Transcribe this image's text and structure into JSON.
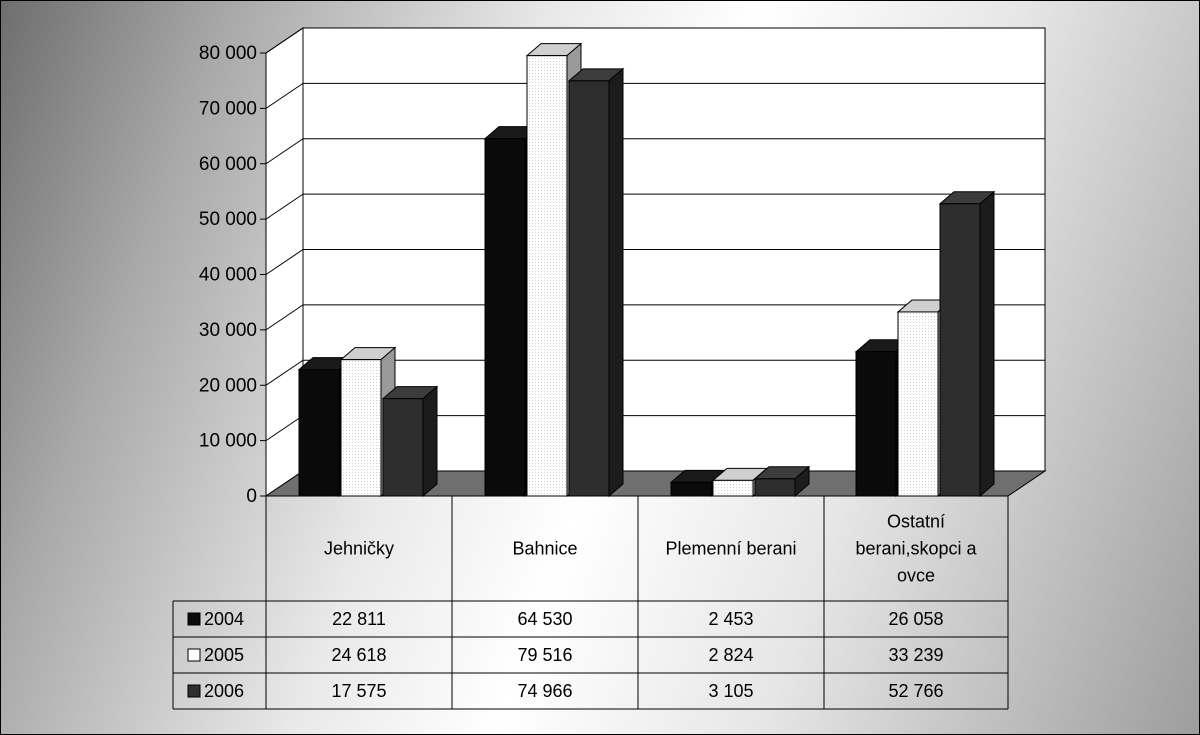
{
  "chart_data": {
    "type": "bar",
    "title": "",
    "xlabel": "",
    "ylabel": "",
    "ylim": [
      0,
      80000
    ],
    "yticks": [
      "0",
      "10 000",
      "20 000",
      "30 000",
      "40 000",
      "50 000",
      "60 000",
      "70 000",
      "80 000"
    ],
    "grid": true,
    "legend": "data-table",
    "categories": [
      [
        "Jehničky"
      ],
      [
        "Bahnice"
      ],
      [
        "Plemenní berani"
      ],
      [
        "Ostatní",
        "berani,skopci a",
        "ovce"
      ]
    ],
    "series": [
      {
        "name": "2004",
        "color": "#0a0a0a",
        "values": [
          22811,
          64530,
          2453,
          26058
        ],
        "labels": [
          "22 811",
          "64 530",
          "2 453",
          "26 058"
        ]
      },
      {
        "name": "2005",
        "color": "#ffffff",
        "values": [
          24618,
          79516,
          2824,
          33239
        ],
        "labels": [
          "24 618",
          "79 516",
          "2 824",
          "33 239"
        ]
      },
      {
        "name": "2006",
        "color": "#2e2e2e",
        "values": [
          17575,
          74966,
          3105,
          52766
        ],
        "labels": [
          "17 575",
          "74 966",
          "3 105",
          "52 766"
        ]
      }
    ]
  }
}
